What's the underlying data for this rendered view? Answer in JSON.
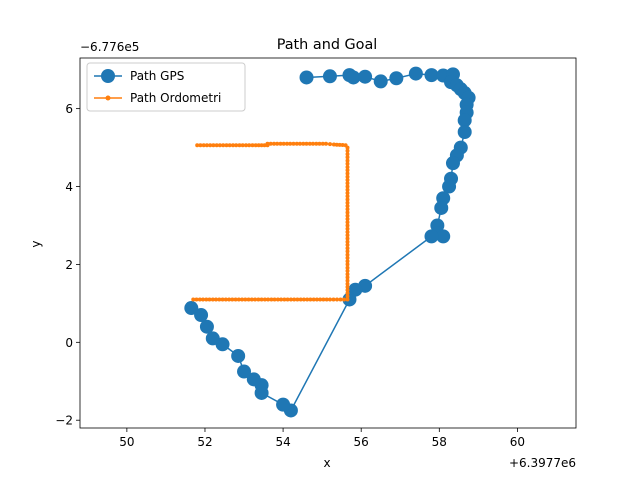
{
  "chart_data": {
    "type": "line",
    "title": "Path and Goal",
    "xlabel": "x",
    "ylabel": "y",
    "x_offset_label": "+6.3977e6",
    "y_offset_label": "−6.776e5",
    "xlim": [
      48.8,
      61.5
    ],
    "ylim": [
      -2.2,
      7.3
    ],
    "x_ticks": [
      50,
      52,
      54,
      56,
      58,
      60
    ],
    "y_ticks": [
      -2,
      0,
      2,
      4,
      6
    ],
    "legend_position": "upper-left",
    "series": [
      {
        "name": "Path GPS",
        "color": "#1f77b4",
        "marker": "large-circle",
        "points": [
          [
            54.6,
            6.8
          ],
          [
            55.2,
            6.83
          ],
          [
            55.7,
            6.86
          ],
          [
            55.8,
            6.8
          ],
          [
            56.1,
            6.82
          ],
          [
            56.5,
            6.7
          ],
          [
            56.9,
            6.78
          ],
          [
            57.4,
            6.9
          ],
          [
            57.8,
            6.86
          ],
          [
            58.1,
            6.85
          ],
          [
            58.35,
            6.88
          ],
          [
            58.3,
            6.68
          ],
          [
            58.45,
            6.6
          ],
          [
            58.55,
            6.5
          ],
          [
            58.65,
            6.4
          ],
          [
            58.75,
            6.28
          ],
          [
            58.7,
            6.1
          ],
          [
            58.7,
            5.9
          ],
          [
            58.65,
            5.7
          ],
          [
            58.65,
            5.4
          ],
          [
            58.55,
            5.0
          ],
          [
            58.45,
            4.8
          ],
          [
            58.35,
            4.6
          ],
          [
            58.3,
            4.2
          ],
          [
            58.25,
            4.0
          ],
          [
            58.1,
            3.7
          ],
          [
            58.05,
            3.45
          ],
          [
            57.95,
            3.0
          ],
          [
            57.95,
            2.8
          ],
          [
            58.1,
            2.72
          ],
          [
            57.8,
            2.72
          ],
          [
            56.1,
            1.45
          ],
          [
            55.85,
            1.35
          ],
          [
            55.7,
            1.1
          ],
          [
            54.2,
            -1.75
          ],
          [
            54.0,
            -1.6
          ],
          [
            53.45,
            -1.3
          ],
          [
            53.45,
            -1.1
          ],
          [
            53.25,
            -0.95
          ],
          [
            53.0,
            -0.75
          ],
          [
            52.85,
            -0.35
          ],
          [
            52.45,
            -0.05
          ],
          [
            52.2,
            0.1
          ],
          [
            52.05,
            0.4
          ],
          [
            51.9,
            0.7
          ],
          [
            51.65,
            0.88
          ]
        ]
      },
      {
        "name": "Path Ordometri",
        "color": "#ff7f0e",
        "marker": "small-dot",
        "points": [
          [
            51.8,
            5.06
          ],
          [
            52.3,
            5.06
          ],
          [
            52.8,
            5.06
          ],
          [
            53.3,
            5.06
          ],
          [
            53.6,
            5.06
          ],
          [
            53.6,
            5.1
          ],
          [
            54.1,
            5.1
          ],
          [
            54.6,
            5.1
          ],
          [
            55.1,
            5.1
          ],
          [
            55.3,
            5.08
          ],
          [
            55.6,
            5.06
          ],
          [
            55.65,
            5.0
          ],
          [
            55.65,
            4.5
          ],
          [
            55.65,
            4.0
          ],
          [
            55.65,
            3.5
          ],
          [
            55.65,
            3.0
          ],
          [
            55.65,
            2.5
          ],
          [
            55.65,
            2.0
          ],
          [
            55.65,
            1.5
          ],
          [
            55.65,
            1.1
          ],
          [
            55.2,
            1.1
          ],
          [
            54.7,
            1.1
          ],
          [
            54.2,
            1.1
          ],
          [
            53.7,
            1.1
          ],
          [
            53.2,
            1.1
          ],
          [
            52.7,
            1.1
          ],
          [
            52.2,
            1.1
          ],
          [
            51.7,
            1.1
          ]
        ]
      }
    ]
  }
}
